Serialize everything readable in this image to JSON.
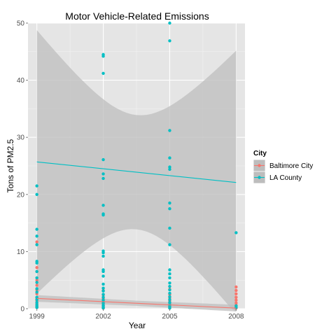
{
  "chart_data": {
    "type": "scatter",
    "title": "Motor Vehicle-Related Emissions",
    "xlabel": "Year",
    "ylabel": "Tons of PM2.5",
    "x_ticks": [
      1999,
      2002,
      2005,
      2008
    ],
    "y_ticks": [
      0,
      10,
      20,
      30,
      40,
      50
    ],
    "xlim": [
      1998.6,
      2008.4
    ],
    "ylim": [
      0,
      50
    ],
    "grid": true,
    "legend_title": "City",
    "legend_position": "right",
    "colors": {
      "panel": "#e5e5e5",
      "grid_major": "#ffffff",
      "grid_minor": "#f2f2f2",
      "band": "#bdbdbd"
    },
    "series": [
      {
        "name": "Baltimore City",
        "color": "#f8766d",
        "points": [
          [
            1999,
            11.7
          ],
          [
            1999,
            7.2
          ],
          [
            1999,
            6.5
          ],
          [
            1999,
            5.0
          ],
          [
            1999,
            4.1
          ],
          [
            1999,
            3.3
          ],
          [
            1999,
            2.6
          ],
          [
            1999,
            1.9
          ],
          [
            1999,
            1.4
          ],
          [
            1999,
            0.9
          ],
          [
            1999,
            0.5
          ],
          [
            1999,
            0.2
          ],
          [
            2002,
            3.2
          ],
          [
            2002,
            2.4
          ],
          [
            2002,
            1.8
          ],
          [
            2002,
            1.3
          ],
          [
            2002,
            0.9
          ],
          [
            2002,
            0.6
          ],
          [
            2002,
            0.3
          ],
          [
            2002,
            0.1
          ],
          [
            2005,
            3.4
          ],
          [
            2005,
            2.5
          ],
          [
            2005,
            1.9
          ],
          [
            2005,
            1.4
          ],
          [
            2005,
            1.0
          ],
          [
            2005,
            0.6
          ],
          [
            2005,
            0.3
          ],
          [
            2005,
            0.1
          ],
          [
            2008,
            3.8
          ],
          [
            2008,
            3.2
          ],
          [
            2008,
            2.6
          ],
          [
            2008,
            2.0
          ],
          [
            2008,
            1.5
          ],
          [
            2008,
            1.0
          ],
          [
            2008,
            0.6
          ],
          [
            2008,
            0.3
          ],
          [
            2008,
            0.1
          ]
        ],
        "fit": {
          "start": [
            1999,
            1.8
          ],
          "end": [
            2008,
            0.1
          ],
          "ci_low_end": -0.2,
          "ci_high_end": 0.4,
          "ci_low_start": 1.3,
          "ci_high_start": 2.3
        }
      },
      {
        "name": "LA County",
        "color": "#00bfc4",
        "points": [
          [
            1999,
            21.5
          ],
          [
            1999,
            20.0
          ],
          [
            1999,
            13.9
          ],
          [
            1999,
            12.7
          ],
          [
            1999,
            11.2
          ],
          [
            1999,
            8.3
          ],
          [
            1999,
            8.0
          ],
          [
            1999,
            6.5
          ],
          [
            1999,
            5.4
          ],
          [
            1999,
            4.6
          ],
          [
            1999,
            3.5
          ],
          [
            1999,
            2.9
          ],
          [
            1999,
            2.0
          ],
          [
            1999,
            1.6
          ],
          [
            1999,
            1.1
          ],
          [
            1999,
            0.7
          ],
          [
            1999,
            0.4
          ],
          [
            1999,
            0.2
          ],
          [
            2002,
            44.5
          ],
          [
            2002,
            44.2
          ],
          [
            2002,
            41.2
          ],
          [
            2002,
            26.1
          ],
          [
            2002,
            23.6
          ],
          [
            2002,
            22.8
          ],
          [
            2002,
            18.1
          ],
          [
            2002,
            16.6
          ],
          [
            2002,
            16.4
          ],
          [
            2002,
            10.1
          ],
          [
            2002,
            9.8
          ],
          [
            2002,
            9.2
          ],
          [
            2002,
            6.8
          ],
          [
            2002,
            6.5
          ],
          [
            2002,
            5.7
          ],
          [
            2002,
            4.3
          ],
          [
            2002,
            3.6
          ],
          [
            2002,
            3.1
          ],
          [
            2002,
            2.5
          ],
          [
            2002,
            2.0
          ],
          [
            2002,
            1.5
          ],
          [
            2002,
            1.0
          ],
          [
            2002,
            0.6
          ],
          [
            2002,
            0.3
          ],
          [
            2002,
            0.1
          ],
          [
            2005,
            50.0
          ],
          [
            2005,
            46.9
          ],
          [
            2005,
            31.2
          ],
          [
            2005,
            26.4
          ],
          [
            2005,
            24.8
          ],
          [
            2005,
            24.4
          ],
          [
            2005,
            18.5
          ],
          [
            2005,
            17.5
          ],
          [
            2005,
            14.1
          ],
          [
            2005,
            11.2
          ],
          [
            2005,
            6.8
          ],
          [
            2005,
            6.1
          ],
          [
            2005,
            5.4
          ],
          [
            2005,
            4.5
          ],
          [
            2005,
            3.9
          ],
          [
            2005,
            3.3
          ],
          [
            2005,
            2.7
          ],
          [
            2005,
            2.1
          ],
          [
            2005,
            1.6
          ],
          [
            2005,
            1.1
          ],
          [
            2005,
            0.7
          ],
          [
            2005,
            0.4
          ],
          [
            2005,
            0.1
          ],
          [
            2008,
            13.3
          ],
          [
            2008,
            0.5
          ],
          [
            2008,
            0.2
          ]
        ],
        "fit": {
          "start": [
            1999,
            25.7
          ],
          "end": [
            2008,
            22.1
          ]
        }
      }
    ]
  }
}
